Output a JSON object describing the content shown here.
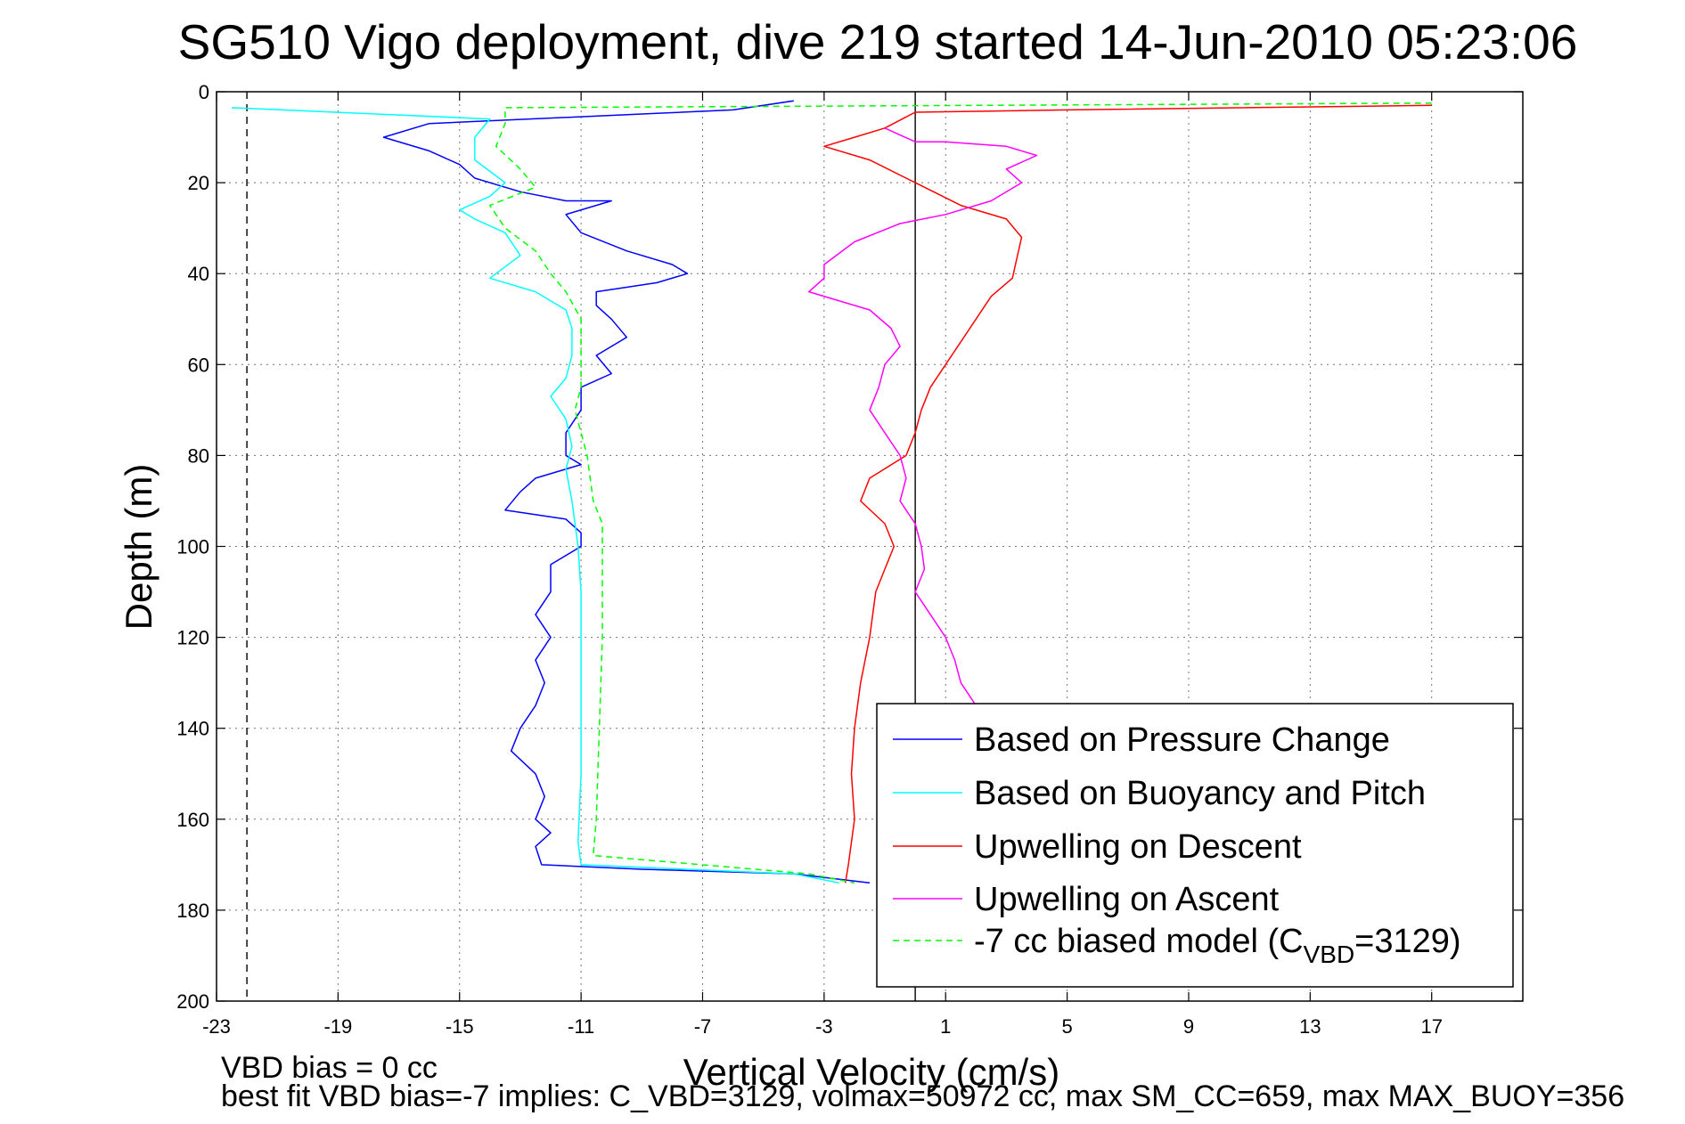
{
  "chart_data": {
    "type": "line",
    "title": "SG510 Vigo deployment, dive 219 started 14-Jun-2010 05:23:06",
    "xlabel": "Vertical Velocity (cm/s)",
    "ylabel": "Depth (m)",
    "xlim": [
      -23,
      20
    ],
    "ylim": [
      0,
      200
    ],
    "y_reversed": true,
    "xticks": [
      "-23",
      "-19",
      "-15",
      "-11",
      "-7",
      "-3",
      "1",
      "5",
      "9",
      "13",
      "17"
    ],
    "yticks": [
      "0",
      "20",
      "40",
      "60",
      "80",
      "100",
      "120",
      "140",
      "160",
      "180",
      "200"
    ],
    "grid": true,
    "legend_position": "bottom-right",
    "reference_lines": [
      {
        "x": -22,
        "style": "dashed",
        "color": "#000000"
      },
      {
        "x": 0,
        "style": "solid",
        "color": "#000000"
      }
    ],
    "series": [
      {
        "name": "Based on Pressure Change",
        "color": "#0000ff",
        "style": "solid",
        "points": [
          [
            -4,
            2
          ],
          [
            -6,
            4
          ],
          [
            -16,
            7
          ],
          [
            -17.5,
            10
          ],
          [
            -16,
            13
          ],
          [
            -15,
            16
          ],
          [
            -14.5,
            19
          ],
          [
            -13,
            22
          ],
          [
            -11.5,
            24
          ],
          [
            -10,
            24
          ],
          [
            -11.5,
            27
          ],
          [
            -11,
            31
          ],
          [
            -9.5,
            35
          ],
          [
            -8,
            38
          ],
          [
            -7.5,
            40
          ],
          [
            -8.5,
            42
          ],
          [
            -10.5,
            44
          ],
          [
            -10.5,
            47
          ],
          [
            -10,
            50
          ],
          [
            -9.5,
            54
          ],
          [
            -10.5,
            58
          ],
          [
            -10,
            62
          ],
          [
            -11,
            65
          ],
          [
            -11,
            70
          ],
          [
            -11.5,
            75
          ],
          [
            -11.5,
            80
          ],
          [
            -11,
            82
          ],
          [
            -12.5,
            85
          ],
          [
            -13,
            88
          ],
          [
            -13.5,
            92
          ],
          [
            -11.5,
            94
          ],
          [
            -11,
            97
          ],
          [
            -11,
            100
          ],
          [
            -12,
            104
          ],
          [
            -12,
            110
          ],
          [
            -12.5,
            115
          ],
          [
            -12,
            120
          ],
          [
            -12.5,
            125
          ],
          [
            -12.2,
            130
          ],
          [
            -12.5,
            135
          ],
          [
            -13,
            140
          ],
          [
            -13.3,
            145
          ],
          [
            -12.5,
            150
          ],
          [
            -12.2,
            155
          ],
          [
            -12.5,
            160
          ],
          [
            -12,
            163
          ],
          [
            -12.5,
            166
          ],
          [
            -12.3,
            170
          ],
          [
            -9,
            171
          ],
          [
            -4,
            172
          ],
          [
            -1.5,
            174
          ]
        ]
      },
      {
        "name": "Based on Buoyancy and Pitch",
        "color": "#00ffff",
        "style": "solid",
        "points": [
          [
            -22.5,
            3.5
          ],
          [
            -14,
            6
          ],
          [
            -14.5,
            10
          ],
          [
            -14.5,
            15
          ],
          [
            -13.5,
            20
          ],
          [
            -14,
            23
          ],
          [
            -15,
            26
          ],
          [
            -14.5,
            28
          ],
          [
            -13.5,
            31
          ],
          [
            -13,
            36
          ],
          [
            -14,
            41
          ],
          [
            -12.5,
            44
          ],
          [
            -11.5,
            48
          ],
          [
            -11.3,
            52
          ],
          [
            -11.3,
            58
          ],
          [
            -11.5,
            63
          ],
          [
            -12,
            67
          ],
          [
            -11.5,
            72
          ],
          [
            -11.3,
            78
          ],
          [
            -11.5,
            83
          ],
          [
            -11.3,
            90
          ],
          [
            -11.2,
            95
          ],
          [
            -11.1,
            100
          ],
          [
            -11,
            110
          ],
          [
            -11,
            130
          ],
          [
            -11,
            150
          ],
          [
            -11.1,
            165
          ],
          [
            -11,
            170
          ],
          [
            -4,
            172
          ],
          [
            -2.5,
            174
          ]
        ]
      },
      {
        "name": "Upwelling on Descent",
        "color": "#ff0000",
        "style": "solid",
        "points": [
          [
            17,
            3
          ],
          [
            5,
            4
          ],
          [
            0,
            4.5
          ],
          [
            -1,
            8
          ],
          [
            -2,
            10
          ],
          [
            -3,
            12
          ],
          [
            -1.5,
            15
          ],
          [
            0,
            20
          ],
          [
            1.5,
            25
          ],
          [
            3,
            28
          ],
          [
            3.5,
            32
          ],
          [
            3.3,
            38
          ],
          [
            3.2,
            41
          ],
          [
            2.5,
            45
          ],
          [
            2,
            50
          ],
          [
            1.5,
            55
          ],
          [
            1,
            60
          ],
          [
            0.5,
            65
          ],
          [
            0.2,
            70
          ],
          [
            0,
            75
          ],
          [
            -0.3,
            80
          ],
          [
            -1.5,
            85
          ],
          [
            -1.8,
            90
          ],
          [
            -1,
            95
          ],
          [
            -0.7,
            100
          ],
          [
            -1,
            105
          ],
          [
            -1.3,
            110
          ],
          [
            -1.5,
            120
          ],
          [
            -1.8,
            130
          ],
          [
            -2,
            140
          ],
          [
            -2.1,
            150
          ],
          [
            -2,
            160
          ],
          [
            -2.2,
            170
          ],
          [
            -2.3,
            174
          ]
        ]
      },
      {
        "name": "Upwelling on Ascent",
        "color": "#ff00ff",
        "style": "solid",
        "points": [
          [
            -1,
            8
          ],
          [
            0,
            11
          ],
          [
            1,
            11
          ],
          [
            3,
            12
          ],
          [
            4,
            14
          ],
          [
            3,
            17
          ],
          [
            3.5,
            20
          ],
          [
            2.5,
            24
          ],
          [
            1,
            27
          ],
          [
            -0.5,
            29
          ],
          [
            -2,
            33
          ],
          [
            -3,
            38
          ],
          [
            -3,
            41
          ],
          [
            -3.5,
            44
          ],
          [
            -1.5,
            48
          ],
          [
            -0.8,
            52
          ],
          [
            -0.5,
            56
          ],
          [
            -1,
            60
          ],
          [
            -1.2,
            65
          ],
          [
            -1.5,
            70
          ],
          [
            -1,
            75
          ],
          [
            -0.5,
            80
          ],
          [
            -0.3,
            85
          ],
          [
            -0.5,
            90
          ],
          [
            0,
            95
          ],
          [
            0.2,
            100
          ],
          [
            0.3,
            105
          ],
          [
            0,
            110
          ],
          [
            0.5,
            115
          ],
          [
            1,
            120
          ],
          [
            1.3,
            125
          ],
          [
            1.5,
            130
          ],
          [
            2,
            135
          ],
          [
            2.5,
            140
          ],
          [
            3,
            150
          ],
          [
            3,
            160
          ],
          [
            3,
            170
          ]
        ]
      },
      {
        "name": "-7 cc biased model (C_VBD=3129)",
        "color": "#00ff00",
        "style": "dashed",
        "points": [
          [
            17,
            2.5
          ],
          [
            -13.5,
            3.5
          ],
          [
            -13.5,
            7
          ],
          [
            -13.8,
            12
          ],
          [
            -13,
            17
          ],
          [
            -12.5,
            21
          ],
          [
            -14,
            25
          ],
          [
            -13.5,
            30
          ],
          [
            -12.5,
            35
          ],
          [
            -12,
            40
          ],
          [
            -11.5,
            44
          ],
          [
            -11,
            50
          ],
          [
            -11,
            60
          ],
          [
            -11,
            65
          ],
          [
            -11.2,
            70
          ],
          [
            -10.8,
            80
          ],
          [
            -10.6,
            90
          ],
          [
            -10.3,
            95
          ],
          [
            -10.3,
            100
          ],
          [
            -10.3,
            120
          ],
          [
            -10.4,
            140
          ],
          [
            -10.5,
            160
          ],
          [
            -10.6,
            168
          ],
          [
            -3.5,
            172
          ],
          [
            -2,
            174
          ]
        ]
      }
    ],
    "legend_label_prefix": "-7 cc biased model (C",
    "legend_label_sub": "VBD",
    "legend_label_suffix": "=3129)"
  },
  "footer": {
    "line1": "VBD bias = 0 cc",
    "line2": "best fit VBD bias=-7 implies: C_VBD=3129, volmax=50972 cc, max SM_CC=659, max MAX_BUOY=356"
  }
}
